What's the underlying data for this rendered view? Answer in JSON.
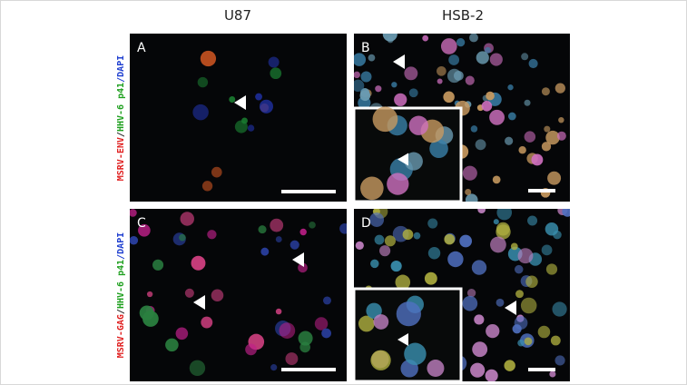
{
  "columns": [
    "U87",
    "HSB-2"
  ],
  "rows": [
    {
      "label_parts": [
        {
          "text": "MSRV-ENV",
          "color": "#e02020"
        },
        {
          "text": "/",
          "color": "#2a2a2a"
        },
        {
          "text": "HHV-6 p41",
          "color": "#1fa01f"
        },
        {
          "text": "/DAPI",
          "color": "#2040d0"
        }
      ]
    },
    {
      "label_parts": [
        {
          "text": "MSRV-GAG",
          "color": "#e02020"
        },
        {
          "text": "/",
          "color": "#2a2a2a"
        },
        {
          "text": "HHV-6 p41",
          "color": "#1fa01f"
        },
        {
          "text": "/DAPI",
          "color": "#2040d0"
        }
      ]
    }
  ],
  "panels": [
    {
      "letter": "A"
    },
    {
      "letter": "B"
    },
    {
      "letter": "C"
    },
    {
      "letter": "D"
    }
  ]
}
